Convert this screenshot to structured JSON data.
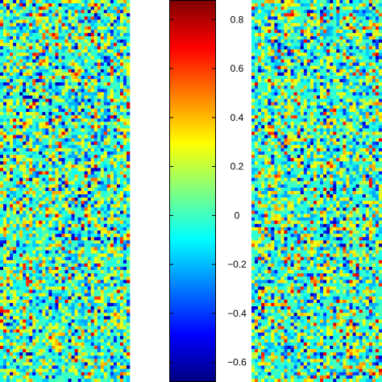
{
  "chart_data": {
    "type": "heatmap",
    "panels": [
      {
        "name": "",
        "columns": 40,
        "rows": 116,
        "value_summary": "random noise-like values mostly near 0 with scattered positive and negative cells"
      },
      {
        "name": "",
        "columns": 40,
        "rows": 116,
        "value_summary": "random noise-like values mostly near 0 with scattered positive and negative cells"
      }
    ],
    "colorbar": {
      "range": [
        -0.68,
        0.88
      ],
      "ticks": [
        {
          "value": 0.8,
          "label": "0.8"
        },
        {
          "value": 0.6,
          "label": "0.6"
        },
        {
          "value": 0.4,
          "label": "0.4"
        },
        {
          "value": 0.2,
          "label": "0.2"
        },
        {
          "value": 0,
          "label": "0"
        },
        {
          "value": -0.2,
          "label": "−0.2"
        },
        {
          "value": -0.4,
          "label": "−0.4"
        },
        {
          "value": -0.6,
          "label": "−0.6"
        }
      ],
      "colormap": "jet",
      "stops": [
        {
          "t": 0.0,
          "color": "#00007f"
        },
        {
          "t": 0.125,
          "color": "#0000ff"
        },
        {
          "t": 0.375,
          "color": "#00ffff"
        },
        {
          "t": 0.625,
          "color": "#ffff00"
        },
        {
          "t": 0.875,
          "color": "#ff0000"
        },
        {
          "t": 1.0,
          "color": "#7f0000"
        }
      ]
    },
    "title": "",
    "xlabel": "",
    "ylabel": "",
    "grid": false,
    "legend": "none"
  }
}
